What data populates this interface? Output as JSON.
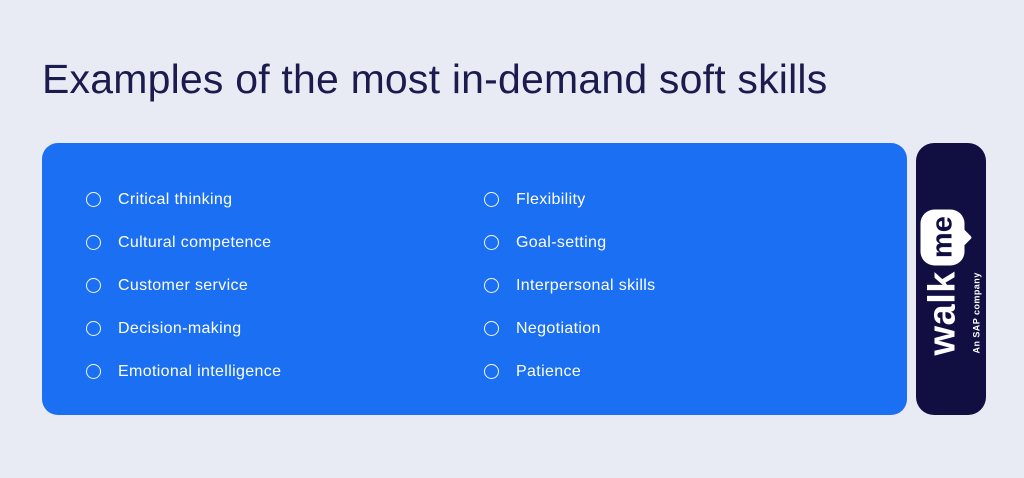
{
  "title": "Examples of the most in-demand soft skills",
  "skills": {
    "columns": [
      {
        "items": [
          "Critical thinking",
          "Cultural competence",
          "Customer service",
          "Decision-making",
          "Emotional intelligence"
        ]
      },
      {
        "items": [
          "Flexibility",
          "Goal-setting",
          "Interpersonal skills",
          "Negotiation",
          "Patience"
        ]
      }
    ]
  },
  "brand": {
    "logo_walk": "walk",
    "logo_me": "me",
    "tagline": "An SAP company"
  },
  "colors": {
    "page_background": "#e9ebf4",
    "panel_blue": "#1b6ff2",
    "card_navy": "#110f42",
    "title_navy": "#1b1b4e",
    "list_text": "#ffffff"
  }
}
